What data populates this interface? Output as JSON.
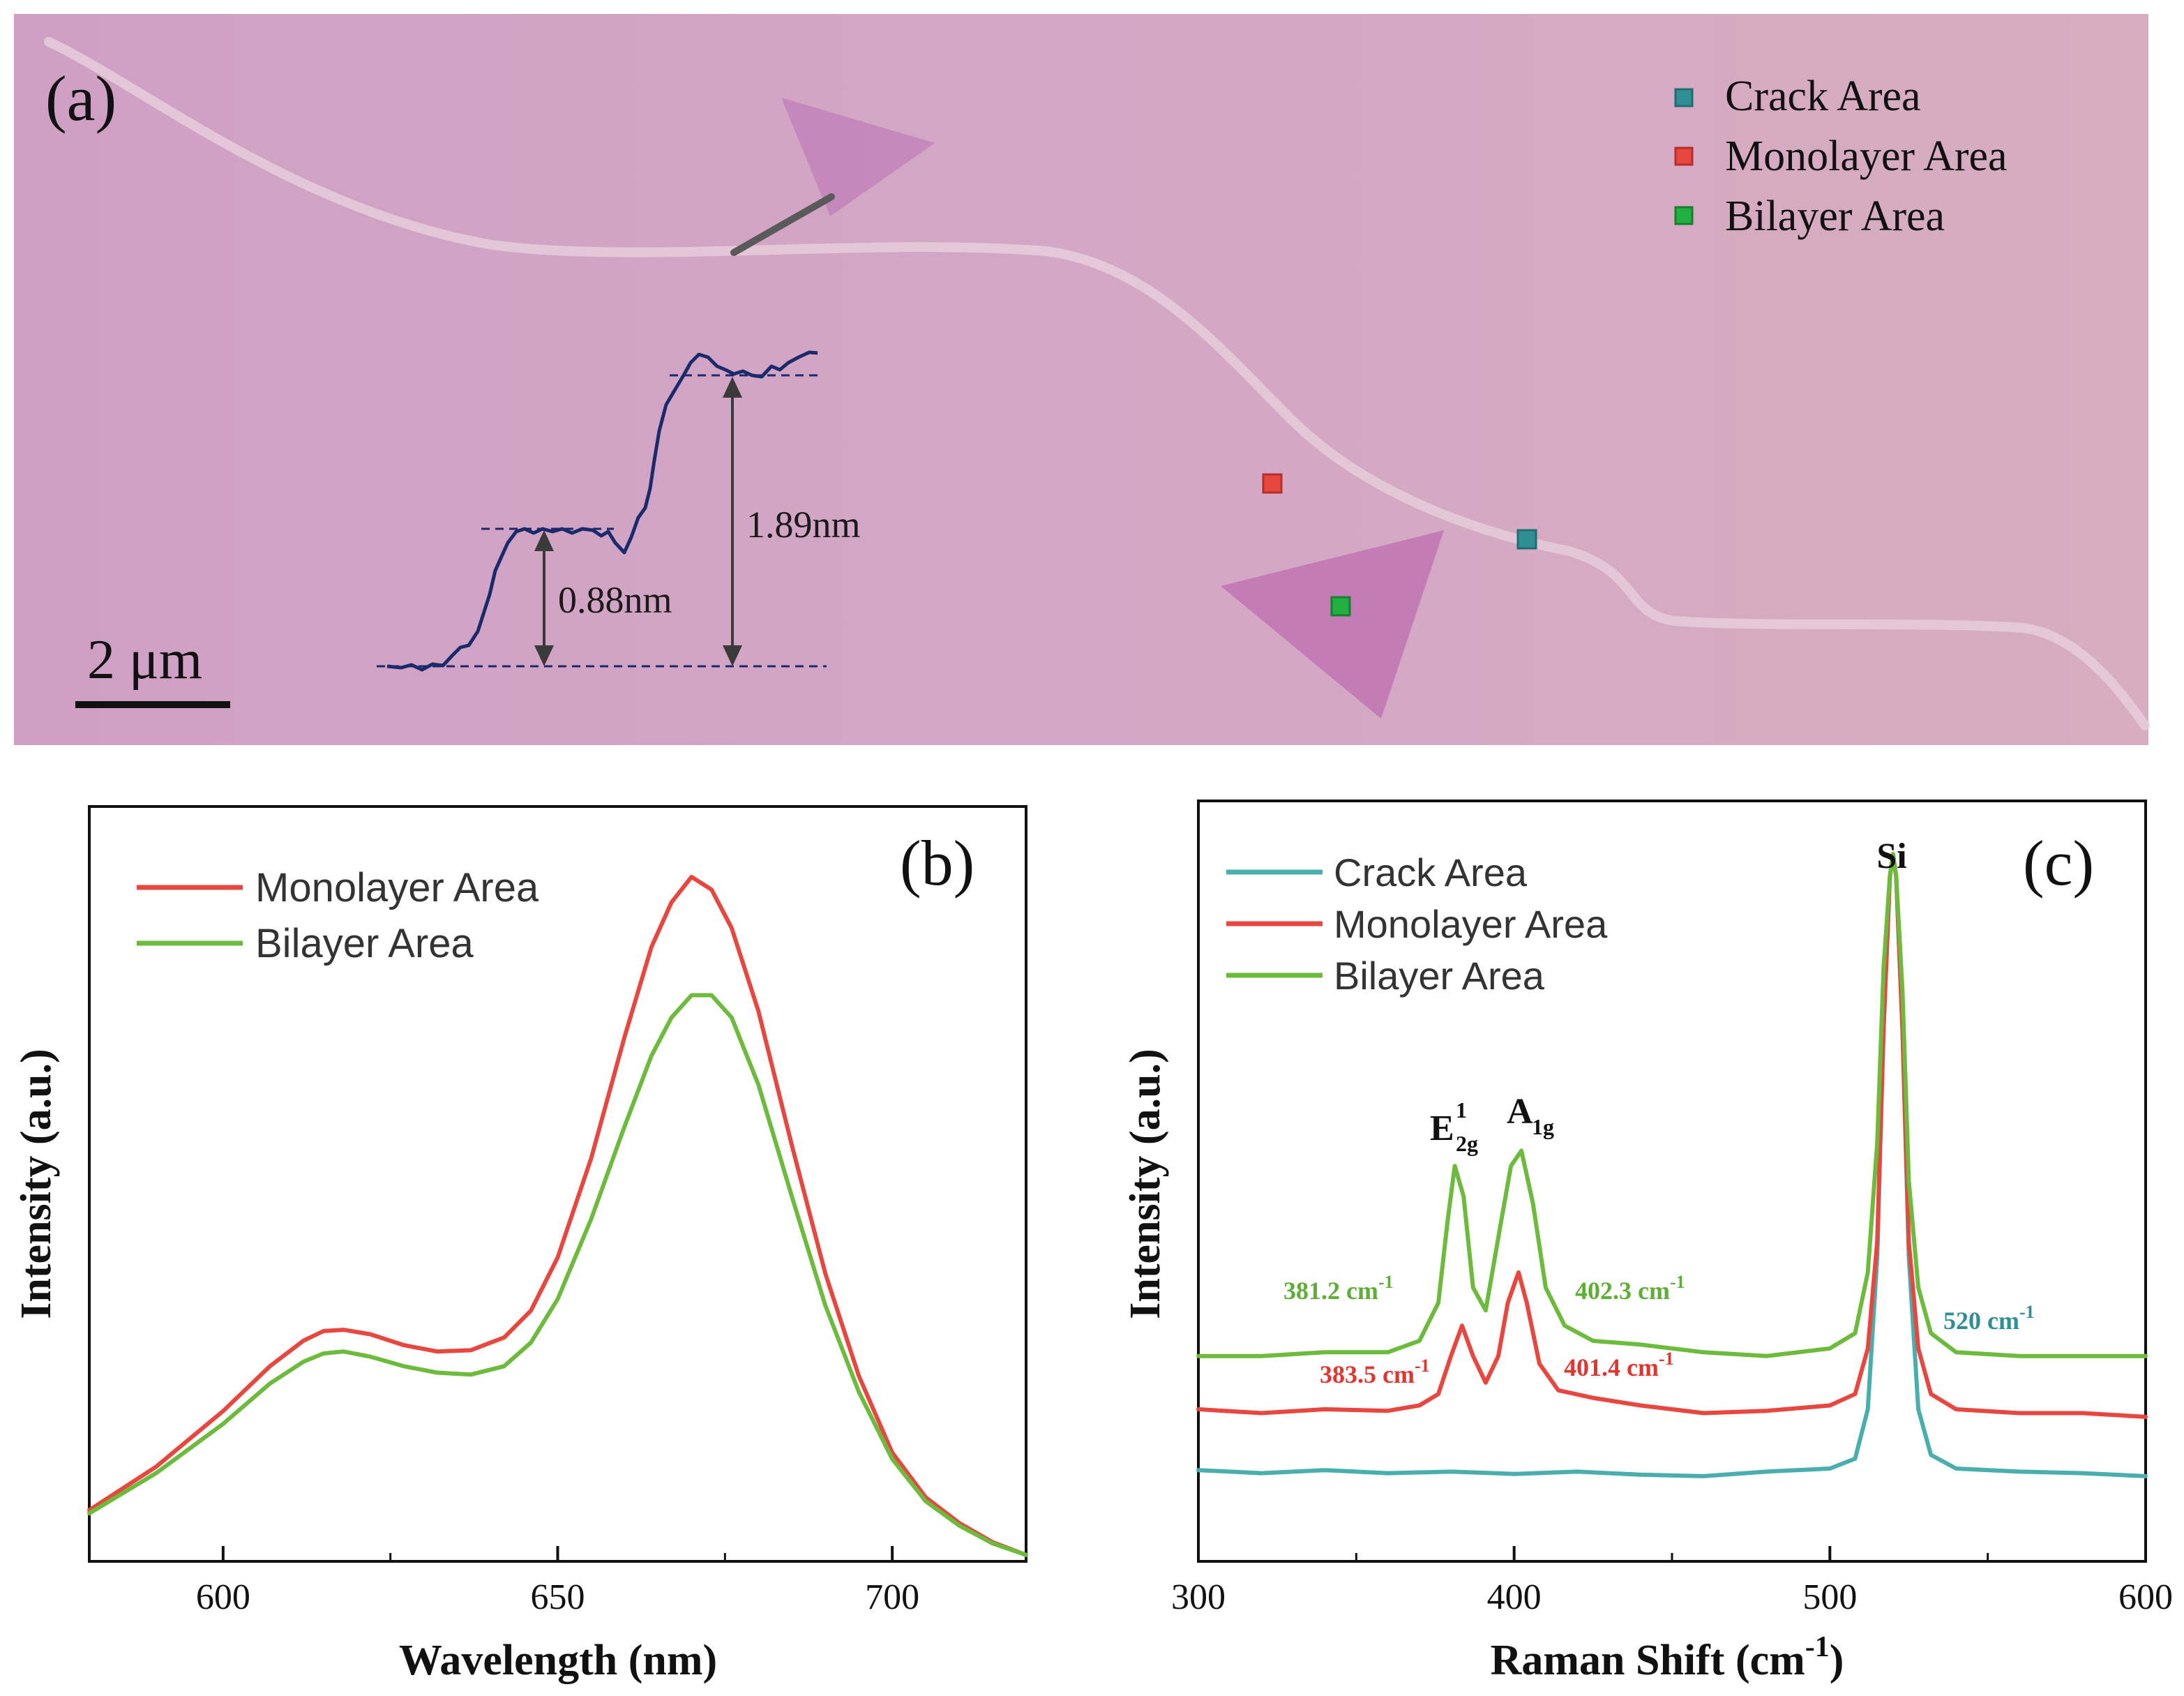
{
  "colors": {
    "monolayer": "#e8473f",
    "bilayer": "#6cbb3c",
    "crack": "#4aaeae",
    "crack_marker": "#2f8f94",
    "profile": "#1b2a6b",
    "micrograph_bg": "#d4a6c6",
    "flake": "#c07fb8",
    "crack_line": "#e6cdda",
    "label_green": "#5fae35",
    "label_red": "#e0362f",
    "label_teal": "#2f8f94"
  },
  "panel_a": {
    "label": "(a)",
    "legend": [
      "Crack Area",
      "Monolayer Area",
      "Bilayer Area"
    ],
    "scale_bar": "2 μm",
    "step_heights": [
      "0.88nm",
      "1.89nm"
    ]
  },
  "chart_data": [
    {
      "type": "line",
      "panel": "(b)",
      "xlabel": "Wavelength (nm)",
      "ylabel": "Intensity (a.u.)",
      "xlim": [
        580,
        720
      ],
      "ylim": [
        0,
        1.18
      ],
      "xticks": [
        600,
        650,
        700
      ],
      "xtick_labels": [
        "600",
        "650",
        "700"
      ],
      "series": [
        {
          "name": "Monolayer Area",
          "color": "#e8473f",
          "x": [
            580,
            590,
            600,
            607,
            612,
            615,
            618,
            622,
            627,
            632,
            637,
            642,
            646,
            650,
            655,
            660,
            664,
            667,
            670,
            673,
            676,
            680,
            685,
            690,
            695,
            700,
            705,
            710,
            715,
            720
          ],
          "y": [
            0.08,
            0.148,
            0.235,
            0.305,
            0.345,
            0.36,
            0.362,
            0.355,
            0.338,
            0.328,
            0.33,
            0.35,
            0.392,
            0.475,
            0.63,
            0.82,
            0.96,
            1.03,
            1.07,
            1.05,
            0.99,
            0.86,
            0.65,
            0.45,
            0.29,
            0.17,
            0.1,
            0.06,
            0.03,
            0.01
          ]
        },
        {
          "name": "Bilayer Area",
          "color": "#6cbb3c",
          "x": [
            580,
            590,
            600,
            607,
            612,
            615,
            618,
            622,
            627,
            632,
            637,
            642,
            646,
            650,
            655,
            660,
            664,
            667,
            670,
            673,
            676,
            680,
            685,
            690,
            695,
            700,
            705,
            710,
            715,
            720
          ],
          "y": [
            0.075,
            0.138,
            0.215,
            0.278,
            0.312,
            0.325,
            0.328,
            0.32,
            0.305,
            0.295,
            0.292,
            0.305,
            0.342,
            0.41,
            0.535,
            0.68,
            0.79,
            0.85,
            0.885,
            0.885,
            0.85,
            0.745,
            0.57,
            0.4,
            0.265,
            0.16,
            0.094,
            0.056,
            0.028,
            0.01
          ]
        }
      ]
    },
    {
      "type": "line",
      "panel": "(c)",
      "xlabel": "Raman Shift (cm-1)",
      "ylabel": "Intensity (a.u.)",
      "xlim": [
        300,
        600
      ],
      "ylim": [
        0,
        1.0
      ],
      "xticks": [
        300,
        400,
        500,
        600
      ],
      "xtick_labels": [
        "300",
        "400",
        "500",
        "600"
      ],
      "series": [
        {
          "name": "Crack Area",
          "color": "#4aaeae",
          "x": [
            300,
            320,
            340,
            360,
            380,
            400,
            420,
            440,
            460,
            480,
            500,
            508,
            512,
            515,
            517,
            519,
            520,
            521,
            523,
            525,
            528,
            532,
            540,
            560,
            580,
            600
          ],
          "y": [
            0.12,
            0.116,
            0.12,
            0.116,
            0.118,
            0.115,
            0.118,
            0.114,
            0.112,
            0.118,
            0.122,
            0.135,
            0.2,
            0.4,
            0.7,
            0.9,
            0.93,
            0.9,
            0.7,
            0.4,
            0.2,
            0.14,
            0.122,
            0.118,
            0.116,
            0.112
          ]
        },
        {
          "name": "Monolayer Area",
          "color": "#e8473f",
          "x": [
            300,
            320,
            340,
            360,
            370,
            376,
            380,
            383.5,
            387,
            391,
            395,
            398,
            401.4,
            404,
            408,
            414,
            425,
            440,
            460,
            480,
            500,
            508,
            512,
            515,
            517,
            519,
            520,
            521,
            523,
            525,
            528,
            532,
            540,
            560,
            580,
            600
          ],
          "y": [
            0.2,
            0.195,
            0.2,
            0.198,
            0.205,
            0.22,
            0.27,
            0.31,
            0.27,
            0.235,
            0.27,
            0.34,
            0.38,
            0.34,
            0.26,
            0.225,
            0.215,
            0.205,
            0.195,
            0.198,
            0.205,
            0.22,
            0.28,
            0.42,
            0.7,
            0.9,
            0.93,
            0.9,
            0.7,
            0.42,
            0.28,
            0.22,
            0.2,
            0.195,
            0.195,
            0.19
          ]
        },
        {
          "name": "Bilayer Area",
          "color": "#6cbb3c",
          "x": [
            300,
            320,
            340,
            360,
            370,
            376,
            379,
            381.2,
            384,
            387,
            391,
            396,
            399,
            402.3,
            406,
            410,
            416,
            425,
            440,
            460,
            480,
            500,
            508,
            512,
            515,
            517,
            519,
            520,
            521,
            523,
            525,
            528,
            532,
            540,
            560,
            580,
            600
          ],
          "y": [
            0.27,
            0.27,
            0.275,
            0.275,
            0.29,
            0.34,
            0.45,
            0.52,
            0.48,
            0.36,
            0.33,
            0.45,
            0.52,
            0.54,
            0.47,
            0.36,
            0.31,
            0.29,
            0.285,
            0.275,
            0.27,
            0.28,
            0.3,
            0.38,
            0.55,
            0.78,
            0.9,
            0.93,
            0.9,
            0.75,
            0.5,
            0.36,
            0.3,
            0.275,
            0.27,
            0.27,
            0.27
          ]
        }
      ],
      "annotations": {
        "si": "Si",
        "e2g_main": "E",
        "e2g_sup": "1",
        "e2g_sub": "2g",
        "a1g_main": "A",
        "a1g_sub": "1g",
        "bilayer_e2g_peak": "381.2 cm",
        "bilayer_a1g_peak": "402.3 cm",
        "monolayer_e2g_peak": "383.5 cm",
        "monolayer_a1g_peak": "401.4 cm",
        "si_peak": "520 cm",
        "unit_exp": "-1"
      }
    }
  ]
}
